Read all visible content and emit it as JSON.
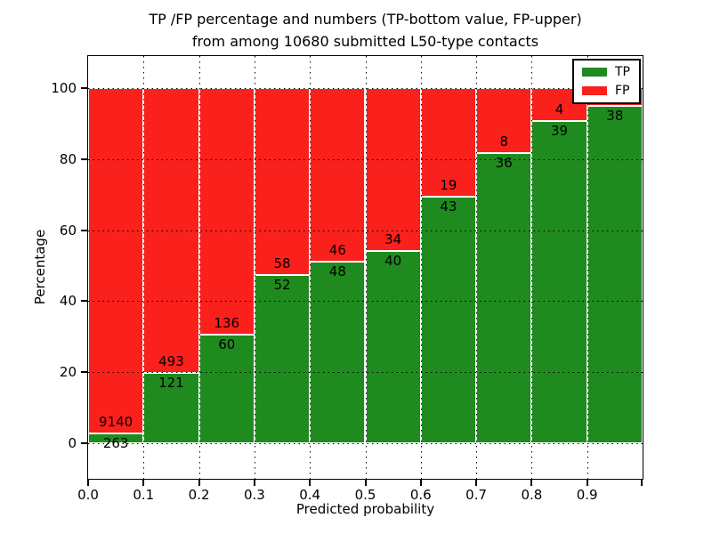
{
  "figure": {
    "title_line1": "TP /FP percentage and numbers (TP-bottom value, FP-upper)",
    "title_line2": "from among 10680 submitted L50-type contacts"
  },
  "chart_data": {
    "type": "bar",
    "variant": "stacked-percentage",
    "title": "TP /FP percentage and numbers (TP-bottom value, FP-upper) from among 10680 submitted L50-type contacts",
    "xlabel": "Predicted probability",
    "ylabel": "Percentage",
    "xlim": [
      0.0,
      1.0
    ],
    "ylim": [
      -10,
      109
    ],
    "xtick_labels": [
      "0.0",
      "0.1",
      "0.2",
      "0.3",
      "0.4",
      "0.5",
      "0.6",
      "0.7",
      "0.8",
      "0.9"
    ],
    "ytick_values": [
      0,
      20,
      40,
      60,
      80,
      100
    ],
    "grid": "dotted-black-both-axes",
    "colors": {
      "tp": "#1f8b1f",
      "fp": "#fa201c",
      "bar_edge": "#ffffff"
    },
    "legend": {
      "position": "upper-right",
      "entries": [
        {
          "label": "TP",
          "color": "#1f8b1f"
        },
        {
          "label": "FP",
          "color": "#fa201c"
        }
      ]
    },
    "bar_width_x": 0.1,
    "stack_top_pct": 100,
    "bars": [
      {
        "x_range": [
          0.0,
          0.1
        ],
        "tp_count": 263,
        "fp_count": 9140,
        "tp_pct": 2.8,
        "fp_label_visible": true
      },
      {
        "x_range": [
          0.1,
          0.2
        ],
        "tp_count": 121,
        "fp_count": 493,
        "tp_pct": 19.7,
        "fp_label_visible": true
      },
      {
        "x_range": [
          0.2,
          0.3
        ],
        "tp_count": 60,
        "fp_count": 136,
        "tp_pct": 30.6,
        "fp_label_visible": true
      },
      {
        "x_range": [
          0.3,
          0.4
        ],
        "tp_count": 52,
        "fp_count": 58,
        "tp_pct": 47.3,
        "fp_label_visible": true
      },
      {
        "x_range": [
          0.4,
          0.5
        ],
        "tp_count": 48,
        "fp_count": 46,
        "tp_pct": 51.1,
        "fp_label_visible": true
      },
      {
        "x_range": [
          0.5,
          0.6
        ],
        "tp_count": 40,
        "fp_count": 34,
        "tp_pct": 54.1,
        "fp_label_visible": true
      },
      {
        "x_range": [
          0.6,
          0.7
        ],
        "tp_count": 43,
        "fp_count": 19,
        "tp_pct": 69.4,
        "fp_label_visible": true
      },
      {
        "x_range": [
          0.7,
          0.8
        ],
        "tp_count": 36,
        "fp_count": 8,
        "tp_pct": 81.8,
        "fp_label_visible": true
      },
      {
        "x_range": [
          0.8,
          0.9
        ],
        "tp_count": 39,
        "fp_count": 4,
        "tp_pct": 90.7,
        "fp_label_visible": true
      },
      {
        "x_range": [
          0.9,
          1.0
        ],
        "tp_count": 38,
        "fp_count": null,
        "tp_pct": 95.0,
        "fp_label_visible": false
      }
    ]
  }
}
